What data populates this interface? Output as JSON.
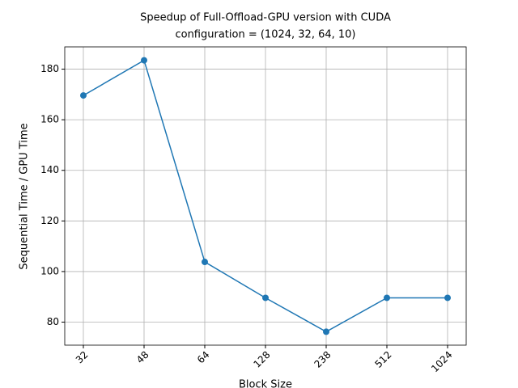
{
  "chart_data": {
    "type": "line",
    "title": "Speedup of Full-Offload-GPU version with CUDA",
    "subtitle": "configuration = (1024, 32, 64, 10)",
    "x_label": "Block Size",
    "y_label": "Sequential Time / GPU Time",
    "categories": [
      "32",
      "48",
      "64",
      "128",
      "238",
      "512",
      "1024"
    ],
    "series": [
      {
        "name": "Speedup",
        "color": "#1f77b4",
        "values": [
          169.6,
          183.5,
          103.8,
          89.6,
          76.2,
          89.6,
          89.6
        ]
      }
    ],
    "ylim": [
      70.9,
      188.8
    ],
    "yticks": [
      80,
      100,
      120,
      140,
      160,
      180
    ],
    "grid": true
  }
}
